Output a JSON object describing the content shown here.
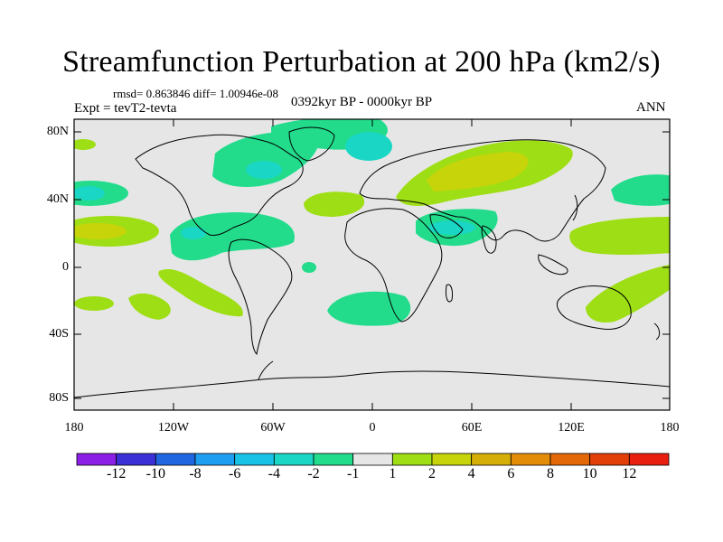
{
  "title": "Streamfunction Perturbation at 200 hPa (km2/s)",
  "stats_line": "rmsd= 0.863846 diff= 1.00946e-08",
  "expt_line": "Expt = tevT2-tevta",
  "period_line": "0392kyr BP - 0000kyr BP",
  "season": "ANN",
  "axes": {
    "lat_labels": [
      "80N",
      "40N",
      "0",
      "40S",
      "80S"
    ],
    "lon_labels": [
      "180",
      "120W",
      "60W",
      "0",
      "60E",
      "120E",
      "180"
    ]
  },
  "colorbar": {
    "labels": [
      "-12",
      "-10",
      "-8",
      "-6",
      "-4",
      "-2",
      "-1",
      "1",
      "2",
      "4",
      "6",
      "8",
      "10",
      "12"
    ],
    "colors": [
      "#8b1fe6",
      "#3b2fd6",
      "#1f66e0",
      "#1e9ef0",
      "#18c2e6",
      "#1ad6c4",
      "#22dc8c",
      "#e6e6e6",
      "#9ede14",
      "#c8d40a",
      "#d6ae08",
      "#e28c08",
      "#e26808",
      "#e23e08",
      "#e81e10"
    ]
  },
  "colors": {
    "background": "#e6e6e6",
    "level_neg1": "#22dc8c",
    "level_neg2": "#1ad6c4",
    "level_neg4": "#18c2e6",
    "level_pos1": "#9ede14",
    "level_pos2": "#c8d40a"
  }
}
